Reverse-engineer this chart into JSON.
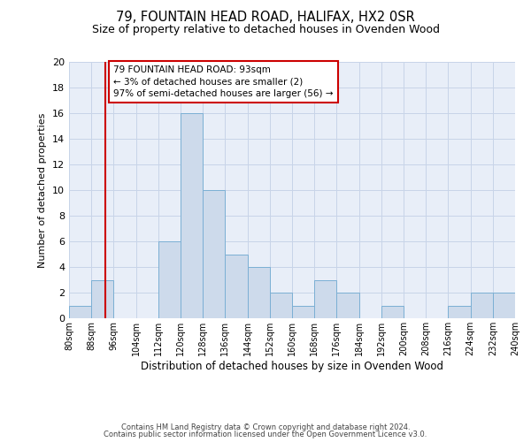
{
  "title": "79, FOUNTAIN HEAD ROAD, HALIFAX, HX2 0SR",
  "subtitle": "Size of property relative to detached houses in Ovenden Wood",
  "xlabel": "Distribution of detached houses by size in Ovenden Wood",
  "ylabel": "Number of detached properties",
  "bins": [
    80,
    88,
    96,
    104,
    112,
    120,
    128,
    136,
    144,
    152,
    160,
    168,
    176,
    184,
    192,
    200,
    208,
    216,
    224,
    232,
    240
  ],
  "counts": [
    1,
    3,
    0,
    0,
    6,
    16,
    10,
    5,
    4,
    2,
    1,
    3,
    2,
    0,
    1,
    0,
    0,
    1,
    2,
    2
  ],
  "bar_color": "#cddaeb",
  "bar_edge_color": "#7bafd4",
  "vline_x": 93,
  "vline_color": "#cc0000",
  "annotation_text": "79 FOUNTAIN HEAD ROAD: 93sqm\n← 3% of detached houses are smaller (2)\n97% of semi-detached houses are larger (56) →",
  "annotation_box_color": "#cc0000",
  "ylim": [
    0,
    20
  ],
  "yticks": [
    0,
    2,
    4,
    6,
    8,
    10,
    12,
    14,
    16,
    18,
    20
  ],
  "tick_labels": [
    "80sqm",
    "88sqm",
    "96sqm",
    "104sqm",
    "112sqm",
    "120sqm",
    "128sqm",
    "136sqm",
    "144sqm",
    "152sqm",
    "160sqm",
    "168sqm",
    "176sqm",
    "184sqm",
    "192sqm",
    "200sqm",
    "208sqm",
    "216sqm",
    "224sqm",
    "232sqm",
    "240sqm"
  ],
  "footer_line1": "Contains HM Land Registry data © Crown copyright and database right 2024.",
  "footer_line2": "Contains public sector information licensed under the Open Government Licence v3.0.",
  "bg_color": "#ffffff",
  "plot_bg_color": "#e8eef8",
  "grid_color": "#c8d4e8",
  "title_fontsize": 10.5,
  "subtitle_fontsize": 9,
  "ylabel_fontsize": 8,
  "xlabel_fontsize": 8.5,
  "tick_fontsize": 7,
  "footer_fontsize": 6,
  "annotation_fontsize": 7.5
}
